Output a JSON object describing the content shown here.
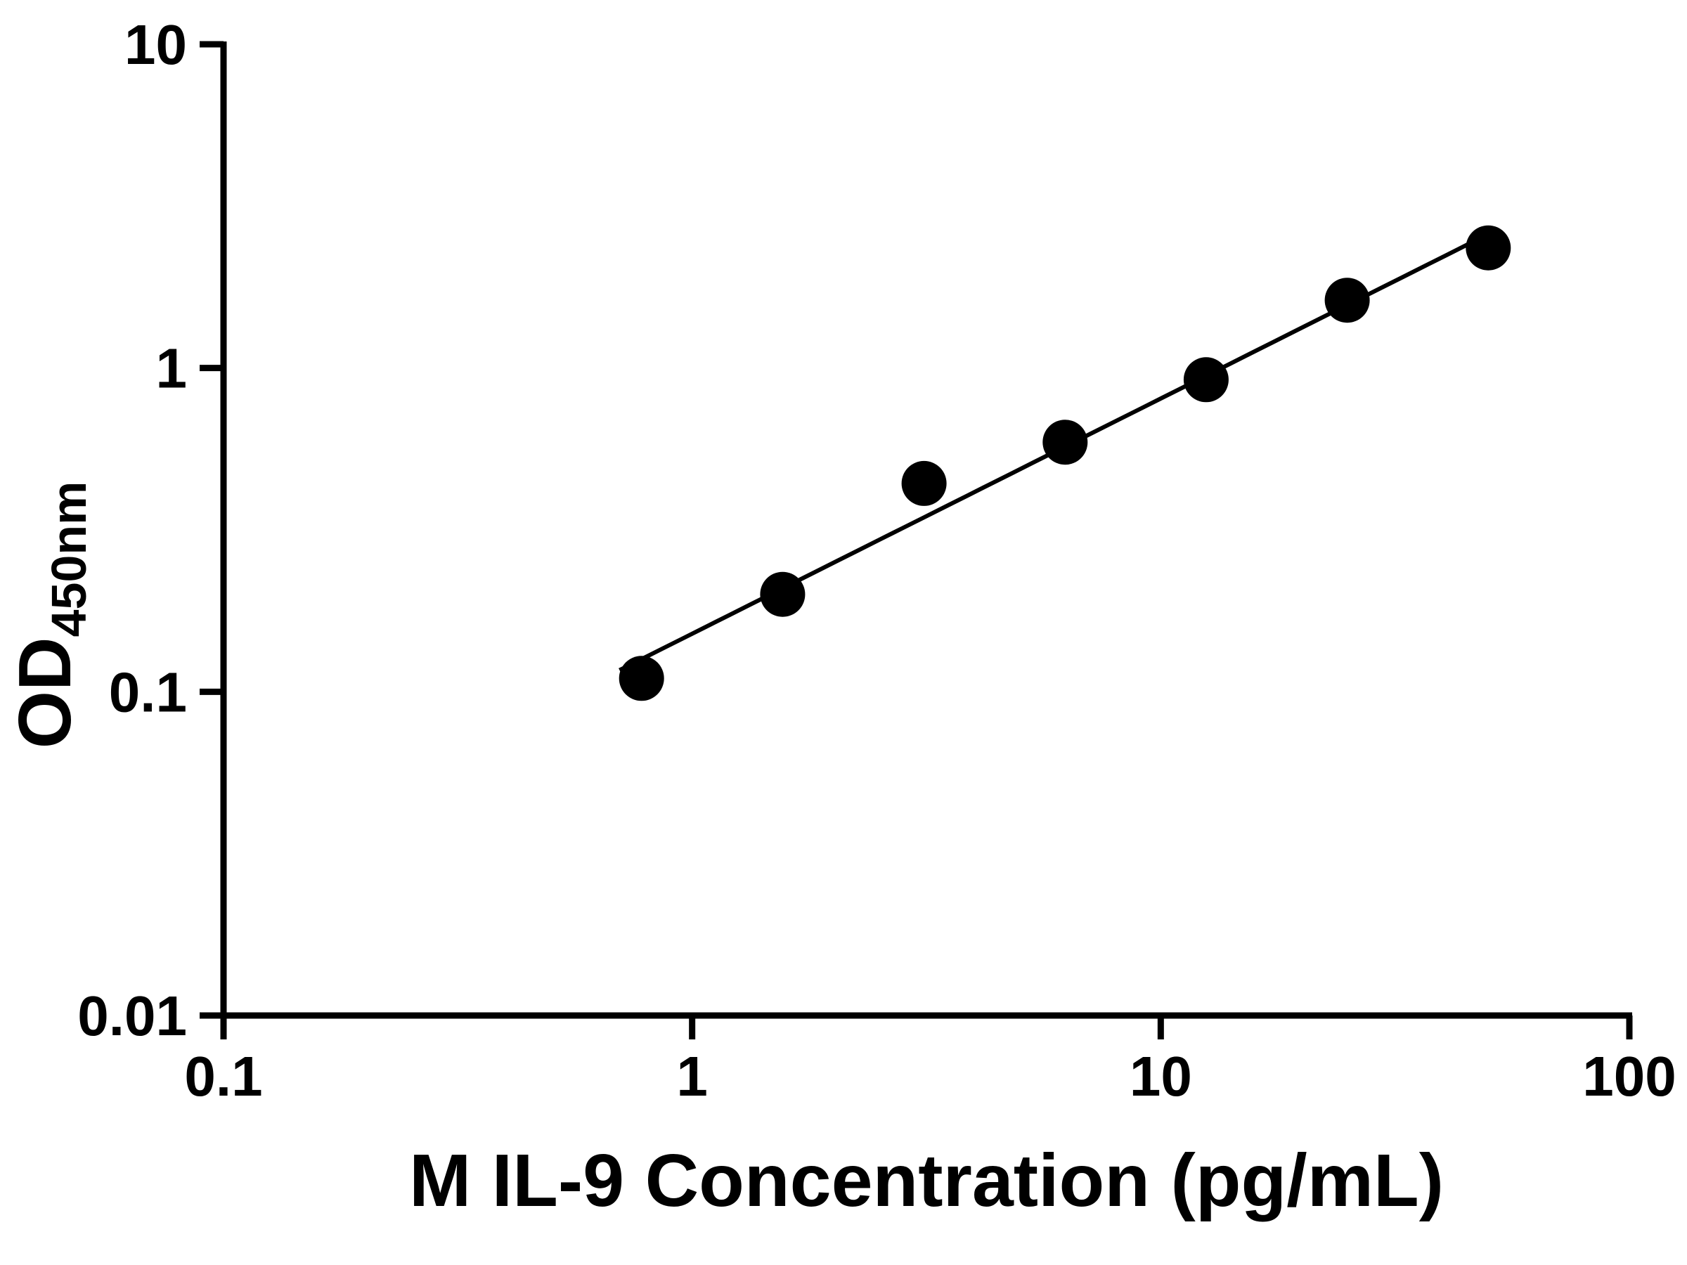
{
  "chart_data": {
    "type": "scatter",
    "title": "",
    "xlabel": "M IL-9 Concentration (pg/mL)",
    "ylabel_main": "OD",
    "ylabel_sub": "450nm",
    "x_scale": "log",
    "y_scale": "log",
    "xlim": [
      0.1,
      100
    ],
    "ylim": [
      0.01,
      10
    ],
    "grid": "off",
    "legend": "none",
    "x_ticks": [
      {
        "value": 0.1,
        "label": "0.1"
      },
      {
        "value": 1,
        "label": "1"
      },
      {
        "value": 10,
        "label": "10"
      },
      {
        "value": 100,
        "label": "100"
      }
    ],
    "y_ticks": [
      {
        "value": 0.01,
        "label": "0.01"
      },
      {
        "value": 0.1,
        "label": "0.1"
      },
      {
        "value": 1,
        "label": "1"
      },
      {
        "value": 10,
        "label": "10"
      }
    ],
    "points": {
      "x": [
        0.78,
        1.56,
        3.125,
        6.25,
        12.5,
        25,
        50
      ],
      "y": [
        0.11,
        0.2,
        0.44,
        0.59,
        0.92,
        1.62,
        2.35
      ]
    },
    "trendline": {
      "type": "power-fit-loglog",
      "x_start": 0.7,
      "x_end": 50.5
    },
    "colors": {
      "background": "#ffffff",
      "axis": "#000000",
      "points": "#000000",
      "line": "#000000"
    }
  }
}
